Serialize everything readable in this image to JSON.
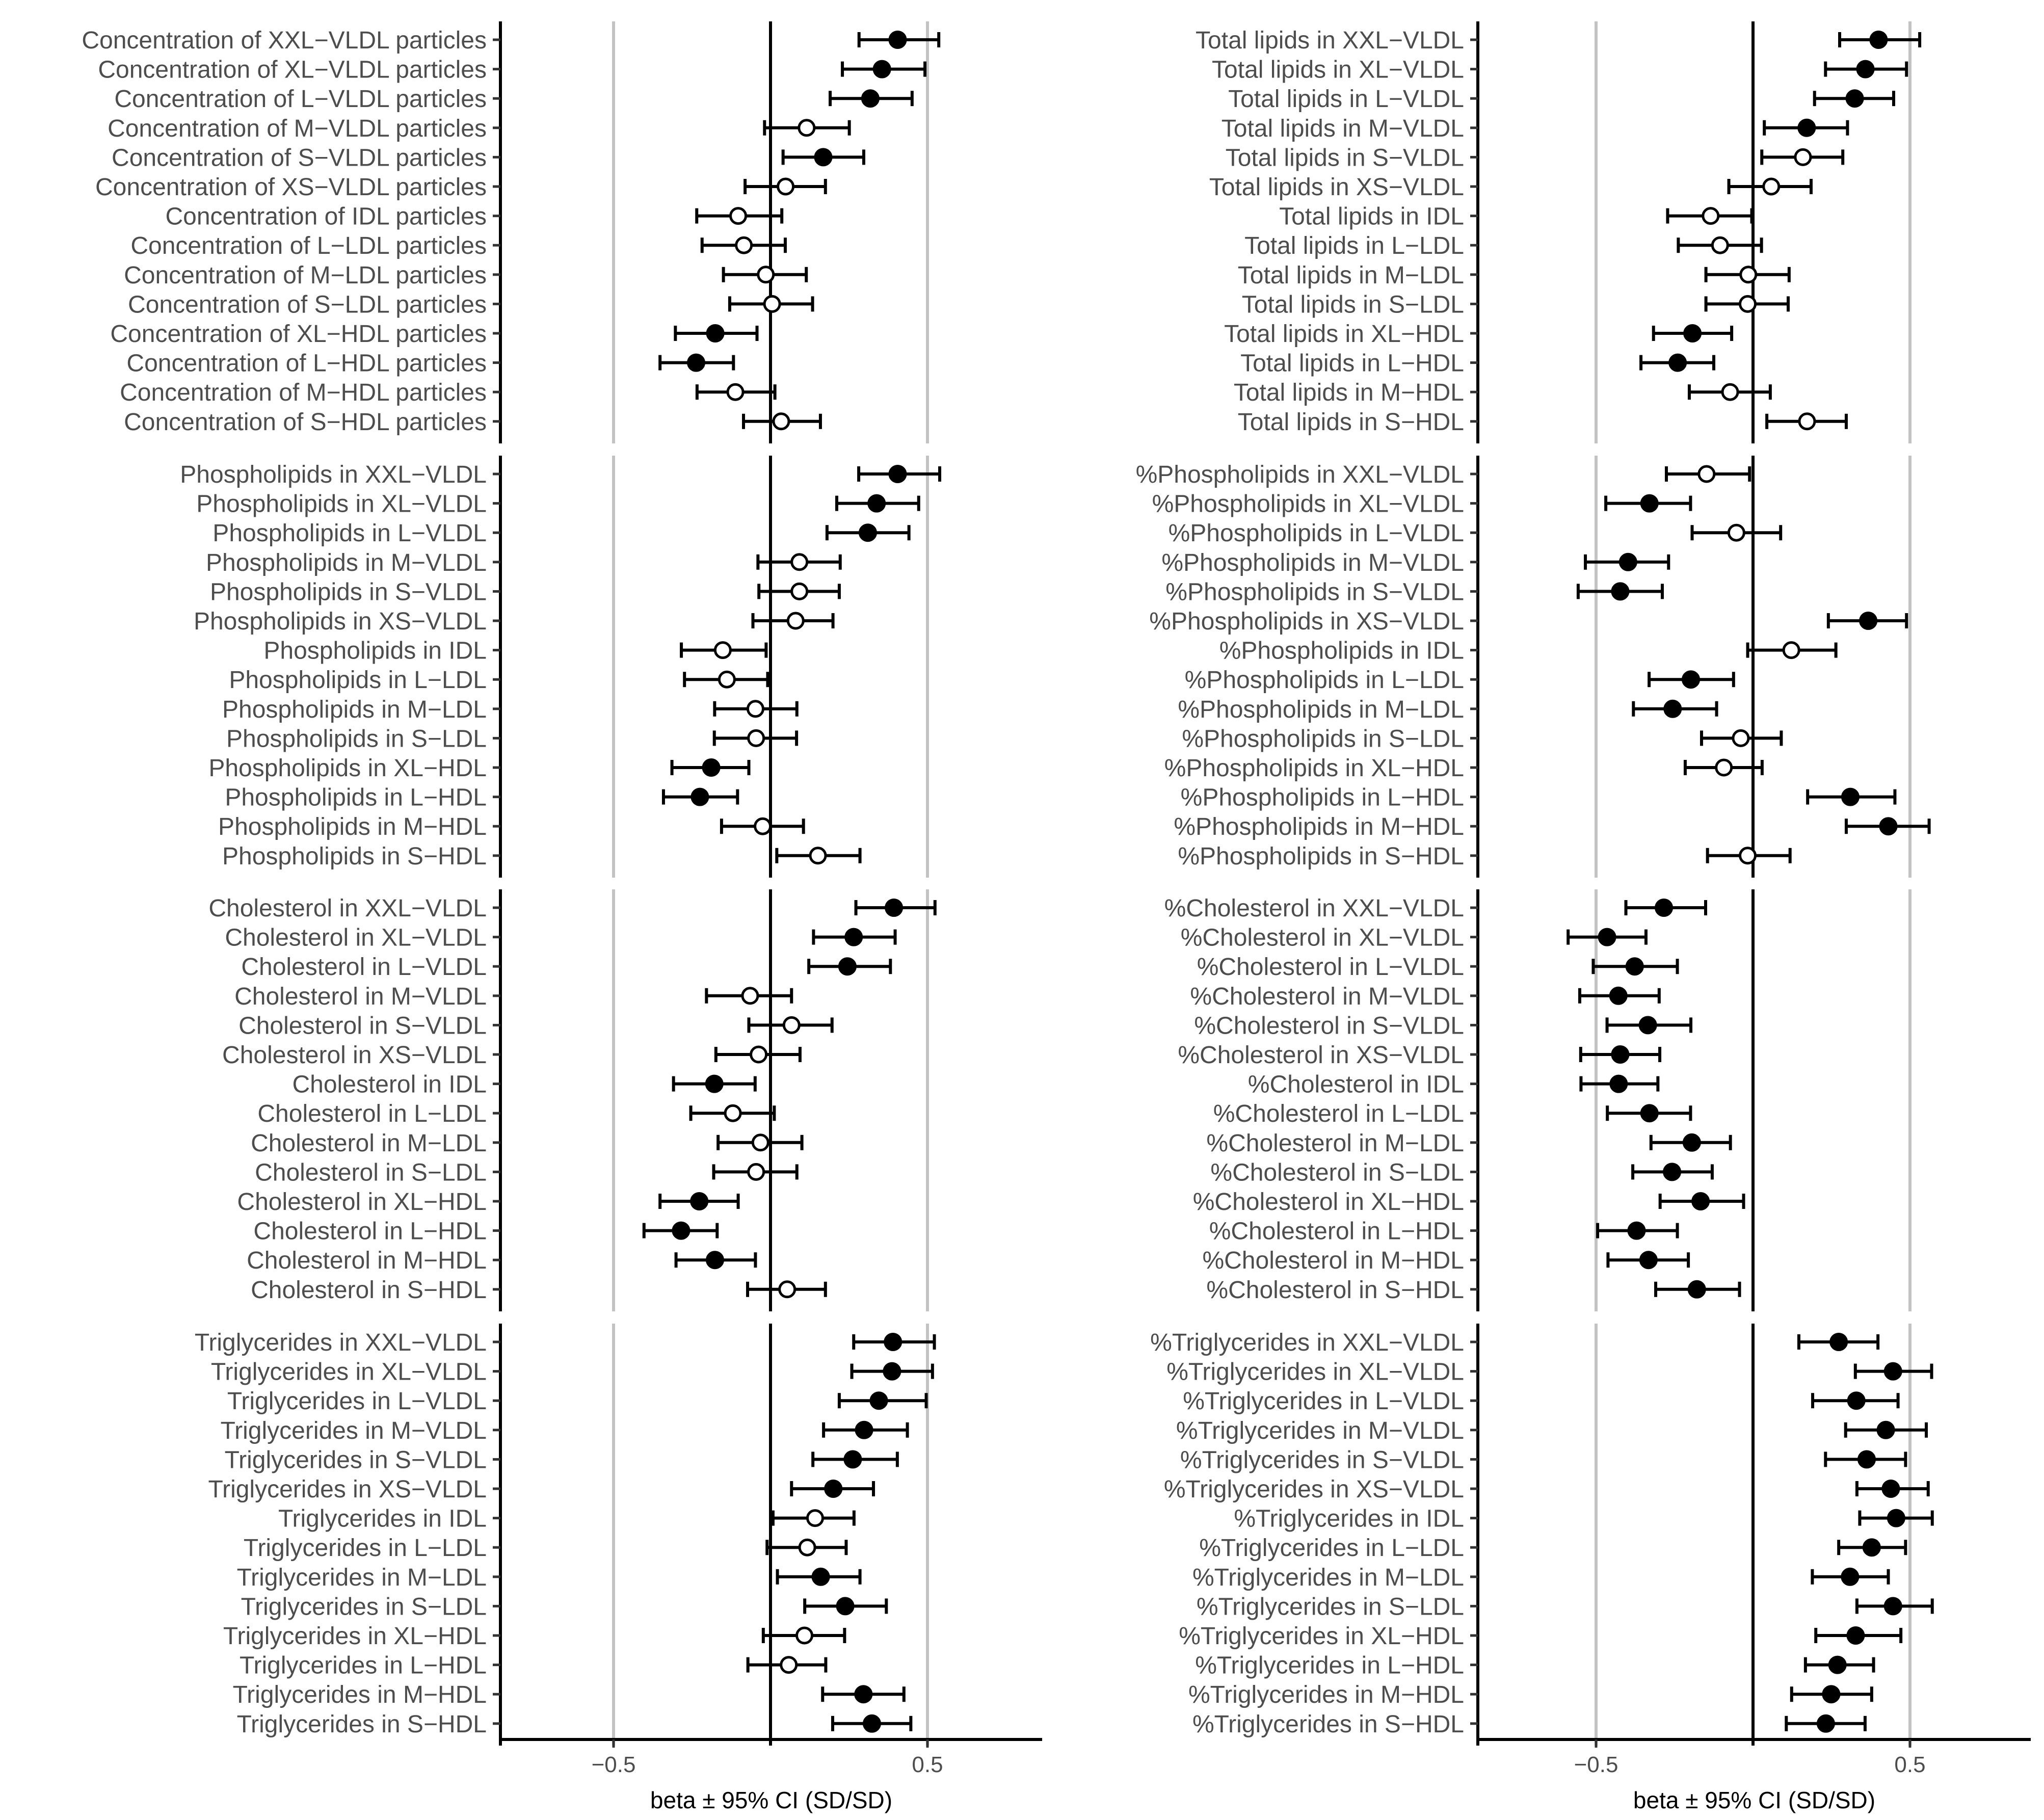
{
  "chart_data": [
    {
      "type": "forest",
      "xlabel": "beta ± 95% CI (SD/SD)",
      "xticks": [
        -0.5,
        0.5
      ],
      "xlim": [
        -0.87,
        0.87
      ],
      "reference_line": 0,
      "gridlines": [
        -0.5,
        0.5
      ],
      "filled_meaning": "filled marker",
      "panels": [
        {
          "name": "Concentration",
          "labels": [
            "Concentration of XXL−VLDL particles",
            "Concentration of XL−VLDL particles",
            "Concentration of L−VLDL particles",
            "Concentration of M−VLDL particles",
            "Concentration of S−VLDL particles",
            "Concentration of XS−VLDL particles",
            "Concentration of IDL particles",
            "Concentration of L−LDL particles",
            "Concentration of M−LDL particles",
            "Concentration of S−LDL particles",
            "Concentration of XL−HDL particles",
            "Concentration of L−HDL particles",
            "Concentration of M−HDL particles",
            "Concentration of S−HDL particles"
          ],
          "beta": [
            0.405,
            0.355,
            0.318,
            0.115,
            0.168,
            0.048,
            -0.103,
            -0.085,
            -0.015,
            0.005,
            -0.176,
            -0.237,
            -0.112,
            0.034
          ],
          "lower": [
            0.282,
            0.229,
            0.19,
            -0.019,
            0.04,
            -0.081,
            -0.235,
            -0.218,
            -0.15,
            -0.13,
            -0.303,
            -0.352,
            -0.234,
            -0.086
          ],
          "upper": [
            0.536,
            0.492,
            0.451,
            0.251,
            0.297,
            0.175,
            0.036,
            0.047,
            0.114,
            0.134,
            -0.043,
            -0.118,
            0.014,
            0.159
          ],
          "filled": [
            true,
            true,
            true,
            false,
            true,
            false,
            false,
            false,
            false,
            false,
            true,
            true,
            false,
            false
          ]
        },
        {
          "name": "Phospholipids",
          "labels": [
            "Phospholipids in XXL−VLDL",
            "Phospholipids in XL−VLDL",
            "Phospholipids in L−VLDL",
            "Phospholipids in M−VLDL",
            "Phospholipids in S−VLDL",
            "Phospholipids in XS−VLDL",
            "Phospholipids in IDL",
            "Phospholipids in L−LDL",
            "Phospholipids in M−LDL",
            "Phospholipids in S−LDL",
            "Phospholipids in XL−HDL",
            "Phospholipids in L−HDL",
            "Phospholipids in M−HDL",
            "Phospholipids in S−HDL"
          ],
          "beta": [
            0.405,
            0.338,
            0.31,
            0.092,
            0.092,
            0.08,
            -0.152,
            -0.139,
            -0.048,
            -0.046,
            -0.189,
            -0.225,
            -0.025,
            0.151
          ],
          "lower": [
            0.281,
            0.211,
            0.18,
            -0.04,
            -0.037,
            -0.056,
            -0.284,
            -0.274,
            -0.178,
            -0.179,
            -0.314,
            -0.341,
            -0.156,
            0.02
          ],
          "upper": [
            0.539,
            0.472,
            0.441,
            0.222,
            0.219,
            0.199,
            -0.014,
            -0.009,
            0.084,
            0.083,
            -0.069,
            -0.105,
            0.105,
            0.285
          ],
          "filled": [
            true,
            true,
            true,
            false,
            false,
            false,
            false,
            false,
            false,
            false,
            true,
            true,
            false,
            false
          ]
        },
        {
          "name": "Cholesterol",
          "labels": [
            "Cholesterol in XXL−VLDL",
            "Cholesterol in XL−VLDL",
            "Cholesterol in L−VLDL",
            "Cholesterol in M−VLDL",
            "Cholesterol in S−VLDL",
            "Cholesterol in XS−VLDL",
            "Cholesterol in IDL",
            "Cholesterol in L−LDL",
            "Cholesterol in M−LDL",
            "Cholesterol in S−LDL",
            "Cholesterol in XL−HDL",
            "Cholesterol in L−HDL",
            "Cholesterol in M−HDL",
            "Cholesterol in S−HDL"
          ],
          "beta": [
            0.393,
            0.265,
            0.245,
            -0.065,
            0.067,
            -0.038,
            -0.179,
            -0.12,
            -0.032,
            -0.046,
            -0.227,
            -0.285,
            -0.177,
            0.053
          ],
          "lower": [
            0.272,
            0.137,
            0.122,
            -0.204,
            -0.069,
            -0.174,
            -0.309,
            -0.254,
            -0.167,
            -0.181,
            -0.352,
            -0.403,
            -0.301,
            -0.073
          ],
          "upper": [
            0.524,
            0.397,
            0.382,
            0.067,
            0.196,
            0.094,
            -0.049,
            0.012,
            0.1,
            0.084,
            -0.103,
            -0.17,
            -0.048,
            0.175
          ],
          "filled": [
            true,
            true,
            true,
            false,
            false,
            false,
            true,
            false,
            false,
            false,
            true,
            true,
            true,
            false
          ]
        },
        {
          "name": "Triglycerides",
          "labels": [
            "Triglycerides in XXL−VLDL",
            "Triglycerides in XL−VLDL",
            "Triglycerides in L−VLDL",
            "Triglycerides in M−VLDL",
            "Triglycerides in S−VLDL",
            "Triglycerides in XS−VLDL",
            "Triglycerides in IDL",
            "Triglycerides in L−LDL",
            "Triglycerides in M−LDL",
            "Triglycerides in S−LDL",
            "Triglycerides in XL−HDL",
            "Triglycerides in L−HDL",
            "Triglycerides in M−HDL",
            "Triglycerides in S−HDL"
          ],
          "beta": [
            0.39,
            0.387,
            0.345,
            0.298,
            0.262,
            0.2,
            0.142,
            0.117,
            0.16,
            0.238,
            0.108,
            0.058,
            0.296,
            0.323
          ],
          "lower": [
            0.265,
            0.259,
            0.219,
            0.169,
            0.135,
            0.067,
            0.008,
            -0.011,
            0.022,
            0.109,
            -0.023,
            -0.072,
            0.166,
            0.198
          ],
          "upper": [
            0.522,
            0.516,
            0.496,
            0.436,
            0.404,
            0.328,
            0.266,
            0.241,
            0.285,
            0.369,
            0.236,
            0.176,
            0.425,
            0.447
          ],
          "filled": [
            true,
            true,
            true,
            true,
            true,
            true,
            false,
            false,
            true,
            true,
            false,
            false,
            true,
            true
          ]
        }
      ]
    },
    {
      "type": "forest",
      "xlabel": "beta ± 95% CI (SD/SD)",
      "xticks": [
        -0.5,
        0.5
      ],
      "xlim": [
        -0.87,
        0.87
      ],
      "reference_line": 0,
      "gridlines": [
        -0.5,
        0.5
      ],
      "panels": [
        {
          "name": "Total lipids",
          "labels": [
            "Total lipids in XXL−VLDL",
            "Total lipids in XL−VLDL",
            "Total lipids in L−VLDL",
            "Total lipids in M−VLDL",
            "Total lipids in S−VLDL",
            "Total lipids in XS−VLDL",
            "Total lipids in IDL",
            "Total lipids in L−LDL",
            "Total lipids in M−LDL",
            "Total lipids in S−LDL",
            "Total lipids in XL−HDL",
            "Total lipids in L−HDL",
            "Total lipids in M−HDL",
            "Total lipids in S−HDL"
          ],
          "beta": [
            0.4,
            0.358,
            0.324,
            0.171,
            0.159,
            0.058,
            -0.135,
            -0.105,
            -0.015,
            -0.017,
            -0.193,
            -0.24,
            -0.073,
            0.172
          ],
          "lower": [
            0.276,
            0.231,
            0.196,
            0.036,
            0.028,
            -0.077,
            -0.272,
            -0.238,
            -0.15,
            -0.15,
            -0.317,
            -0.357,
            -0.203,
            0.044
          ],
          "upper": [
            0.531,
            0.489,
            0.448,
            0.301,
            0.286,
            0.185,
            -0.004,
            0.027,
            0.115,
            0.112,
            -0.068,
            -0.125,
            0.055,
            0.297
          ],
          "filled": [
            true,
            true,
            true,
            true,
            false,
            false,
            false,
            false,
            false,
            false,
            true,
            true,
            false,
            false
          ]
        },
        {
          "name": "%Phospholipids",
          "labels": [
            "%Phospholipids in XXL−VLDL",
            "%Phospholipids in XL−VLDL",
            "%Phospholipids in L−VLDL",
            "%Phospholipids in M−VLDL",
            "%Phospholipids in S−VLDL",
            "%Phospholipids in XS−VLDL",
            "%Phospholipids in IDL",
            "%Phospholipids in L−LDL",
            "%Phospholipids in M−LDL",
            "%Phospholipids in S−LDL",
            "%Phospholipids in XL−HDL",
            "%Phospholipids in L−HDL",
            "%Phospholipids in M−HDL",
            "%Phospholipids in S−HDL"
          ],
          "beta": [
            -0.148,
            -0.33,
            -0.053,
            -0.398,
            -0.423,
            0.367,
            0.122,
            -0.198,
            -0.256,
            -0.039,
            -0.093,
            0.31,
            0.431,
            -0.017
          ],
          "lower": [
            -0.276,
            -0.469,
            -0.194,
            -0.534,
            -0.557,
            0.24,
            -0.017,
            -0.331,
            -0.381,
            -0.164,
            -0.216,
            0.174,
            0.297,
            -0.145
          ],
          "upper": [
            -0.011,
            -0.199,
            0.088,
            -0.269,
            -0.289,
            0.489,
            0.264,
            -0.062,
            -0.116,
            0.09,
            0.029,
            0.452,
            0.561,
            0.118
          ],
          "filled": [
            false,
            true,
            false,
            true,
            true,
            true,
            false,
            true,
            true,
            false,
            false,
            true,
            true,
            false
          ]
        },
        {
          "name": "%Cholesterol",
          "labels": [
            "%Cholesterol in XXL−VLDL",
            "%Cholesterol in XL−VLDL",
            "%Cholesterol in L−VLDL",
            "%Cholesterol in M−VLDL",
            "%Cholesterol in S−VLDL",
            "%Cholesterol in XS−VLDL",
            "%Cholesterol in IDL",
            "%Cholesterol in L−LDL",
            "%Cholesterol in M−LDL",
            "%Cholesterol in S−LDL",
            "%Cholesterol in XL−HDL",
            "%Cholesterol in L−HDL",
            "%Cholesterol in M−HDL",
            "%Cholesterol in S−HDL"
          ],
          "beta": [
            -0.284,
            -0.465,
            -0.377,
            -0.429,
            -0.335,
            -0.423,
            -0.428,
            -0.33,
            -0.195,
            -0.258,
            -0.167,
            -0.371,
            -0.333,
            -0.179
          ],
          "lower": [
            -0.405,
            -0.589,
            -0.509,
            -0.552,
            -0.465,
            -0.549,
            -0.548,
            -0.464,
            -0.325,
            -0.383,
            -0.296,
            -0.495,
            -0.462,
            -0.31
          ],
          "upper": [
            -0.151,
            -0.341,
            -0.241,
            -0.299,
            -0.198,
            -0.297,
            -0.303,
            -0.199,
            -0.072,
            -0.13,
            -0.03,
            -0.241,
            -0.206,
            -0.043
          ],
          "filled": [
            true,
            true,
            true,
            true,
            true,
            true,
            true,
            true,
            true,
            true,
            true,
            true,
            true,
            true
          ]
        },
        {
          "name": "%Triglycerides",
          "labels": [
            "%Triglycerides in XXL−VLDL",
            "%Triglycerides in XL−VLDL",
            "%Triglycerides in L−VLDL",
            "%Triglycerides in M−VLDL",
            "%Triglycerides in S−VLDL",
            "%Triglycerides in XS−VLDL",
            "%Triglycerides in IDL",
            "%Triglycerides in L−LDL",
            "%Triglycerides in M−LDL",
            "%Triglycerides in S−LDL",
            "%Triglycerides in XL−HDL",
            "%Triglycerides in L−HDL",
            "%Triglycerides in M−HDL",
            "%Triglycerides in S−HDL"
          ],
          "beta": [
            0.273,
            0.446,
            0.329,
            0.423,
            0.362,
            0.439,
            0.456,
            0.378,
            0.309,
            0.446,
            0.327,
            0.269,
            0.249,
            0.232
          ],
          "lower": [
            0.146,
            0.326,
            0.19,
            0.295,
            0.231,
            0.331,
            0.34,
            0.273,
            0.189,
            0.331,
            0.2,
            0.167,
            0.123,
            0.106
          ],
          "upper": [
            0.398,
            0.569,
            0.462,
            0.552,
            0.486,
            0.558,
            0.571,
            0.486,
            0.431,
            0.571,
            0.471,
            0.384,
            0.378,
            0.357
          ],
          "filled": [
            true,
            true,
            true,
            true,
            true,
            true,
            true,
            true,
            true,
            true,
            true,
            true,
            true,
            true
          ]
        }
      ]
    }
  ]
}
